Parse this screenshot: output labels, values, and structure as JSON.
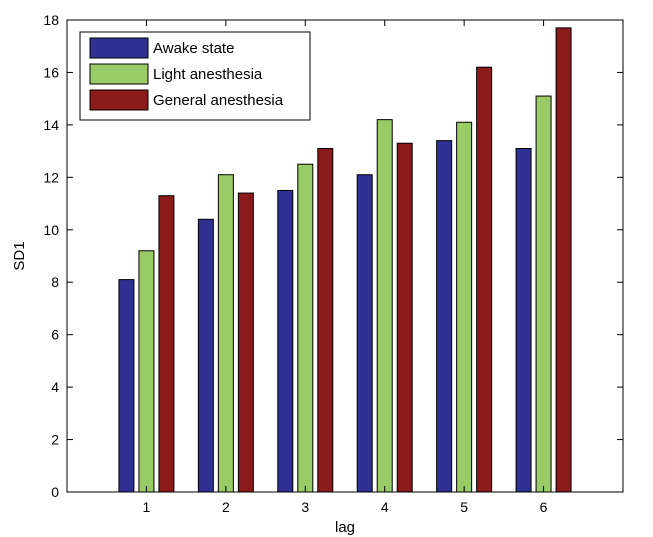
{
  "chart_data": {
    "type": "bar",
    "title": "",
    "xlabel": "lag",
    "ylabel": "SD1",
    "categories": [
      "1",
      "2",
      "3",
      "4",
      "5",
      "6"
    ],
    "ylim": [
      0,
      18
    ],
    "yticks": [
      "0",
      "2",
      "4",
      "6",
      "8",
      "10",
      "12",
      "14",
      "16",
      "18"
    ],
    "xlim": [
      0,
      7
    ],
    "grid": false,
    "legend_position": "top-left",
    "series": [
      {
        "name": "Awake state",
        "color": "#2e3192",
        "values": [
          8.1,
          10.4,
          11.5,
          12.1,
          13.4,
          13.1
        ]
      },
      {
        "name": "Light anesthesia",
        "color": "#99cc66",
        "values": [
          9.2,
          12.1,
          12.5,
          14.2,
          14.1,
          15.1
        ]
      },
      {
        "name": "General anesthesia",
        "color": "#8b1a1a",
        "values": [
          11.3,
          11.4,
          13.1,
          13.3,
          16.2,
          17.7
        ]
      }
    ]
  }
}
